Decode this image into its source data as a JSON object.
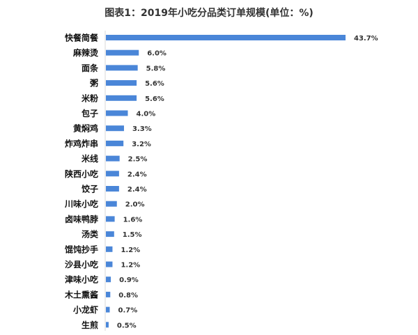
{
  "chart_data": {
    "type": "bar",
    "orientation": "horizontal",
    "title": "图表1：2019年小吃分品类订单规模(单位：%)",
    "categories": [
      "快餐简餐",
      "麻辣烫",
      "面条",
      "粥",
      "米粉",
      "包子",
      "黄焖鸡",
      "炸鸡炸串",
      "米线",
      "陕西小吃",
      "饺子",
      "川味小吃",
      "卤味鸭脖",
      "汤类",
      "馄饨抄手",
      "沙县小吃",
      "津味小吃",
      "木土熏酱",
      "小龙虾",
      "生煎"
    ],
    "values": [
      43.7,
      6.0,
      5.8,
      5.6,
      5.6,
      4.0,
      3.3,
      3.2,
      2.5,
      2.4,
      2.4,
      2.0,
      1.6,
      1.5,
      1.2,
      1.2,
      0.9,
      0.8,
      0.7,
      0.5
    ],
    "value_labels": [
      "43.7%",
      "6.0%",
      "5.8%",
      "5.6%",
      "5.6%",
      "4.0%",
      "3.3%",
      "3.2%",
      "2.5%",
      "2.4%",
      "2.4%",
      "2.0%",
      "1.6%",
      "1.5%",
      "1.2%",
      "1.2%",
      "0.9%",
      "0.8%",
      "0.7%",
      "0.5%"
    ],
    "grid": false,
    "bar_color": "#4a86d8"
  }
}
